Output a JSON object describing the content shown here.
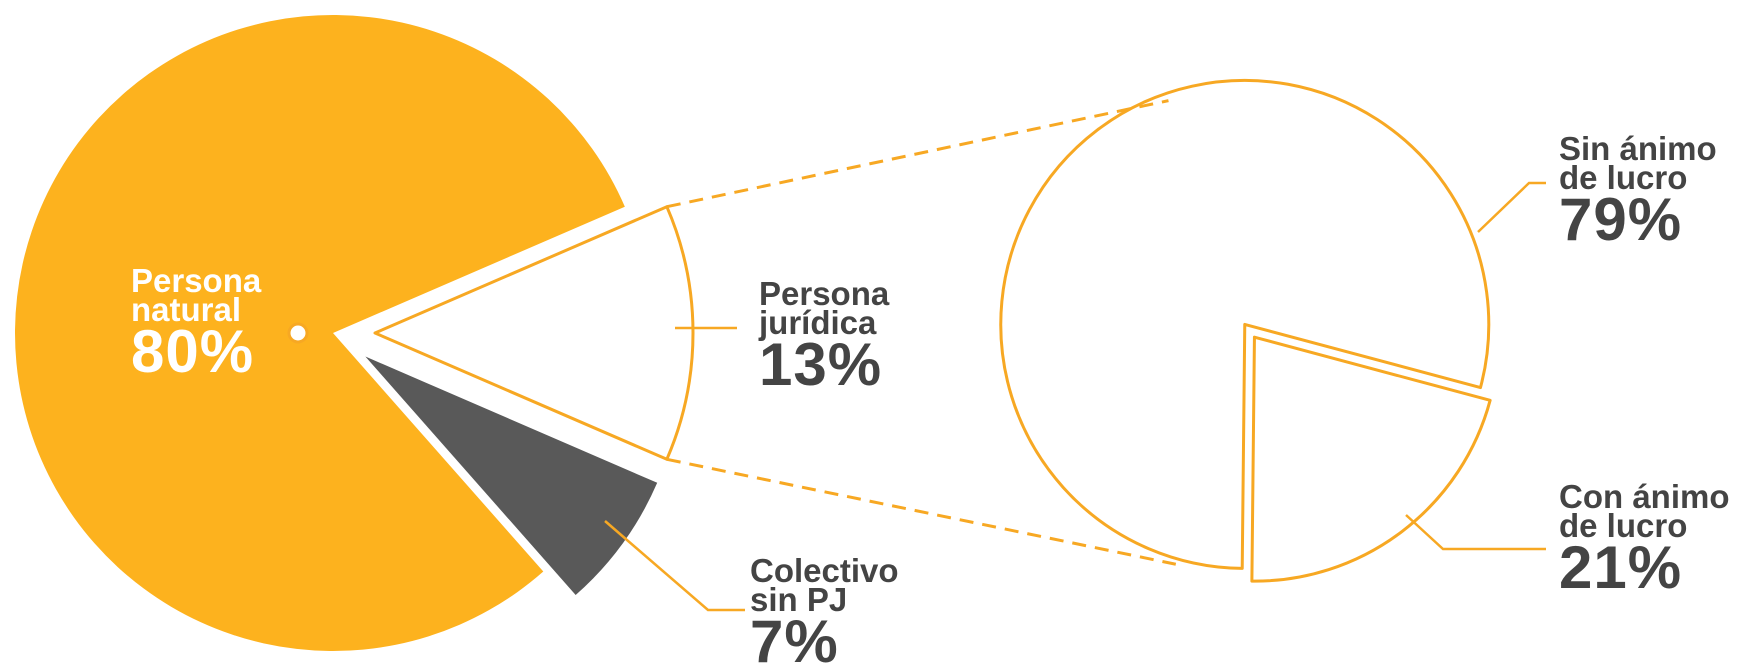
{
  "chart_data": [
    {
      "type": "pie",
      "categories": [
        "Persona natural",
        "Persona jurídica",
        "Colectivo sin PJ"
      ],
      "values": [
        80,
        13,
        7
      ],
      "value_labels": [
        "80%",
        "13%",
        "7%"
      ],
      "colors": [
        "#FDB21E",
        "#FFFFFF",
        "#595959"
      ],
      "edge_color": "#F7A823"
    },
    {
      "type": "pie",
      "categories": [
        "Sin ánimo de lucro",
        "Con ánimo de lucro"
      ],
      "values": [
        79,
        21
      ],
      "value_labels": [
        "79%",
        "21%"
      ],
      "colors": [
        "#FFFFFF",
        "#FFFFFF"
      ],
      "edge_color": "#F7A823"
    }
  ]
}
